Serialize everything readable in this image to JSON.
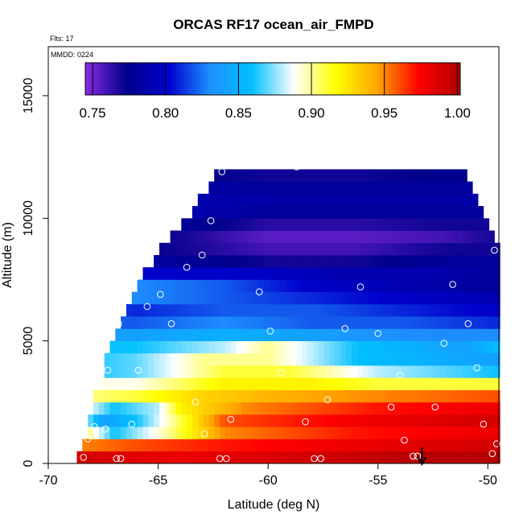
{
  "chart_data": {
    "type": "heatmap",
    "title": "ORCAS RF17 ocean_air_FMPD",
    "annotations": [
      "Flts: 17",
      "MMDD: 0224"
    ],
    "xlabel": "Latitude (deg N)",
    "ylabel": "Altitude (m)",
    "xlim": [
      -70,
      -49.5
    ],
    "ylim": [
      0,
      17000
    ],
    "x_ticks": [
      -70,
      -65,
      -60,
      -55,
      -50
    ],
    "y_ticks": [
      0,
      5000,
      10000,
      15000
    ],
    "colorbar": {
      "range": [
        0.745,
        1.002
      ],
      "ticks": [
        0.75,
        0.8,
        0.85,
        0.9,
        0.95,
        1.0
      ],
      "tick_labels": [
        "0.75",
        "0.80",
        "0.85",
        "0.90",
        "0.95",
        "1.00"
      ],
      "colors": [
        "#8a2be2",
        "#00008b",
        "#0000cd",
        "#1e90ff",
        "#00bfff",
        "#ffffff",
        "#ffff00",
        "#ffa500",
        "#ff0000",
        "#b20000"
      ]
    },
    "domain_top_profile": [
      [
        -68.7,
        0
      ],
      [
        -68.4,
        1000
      ],
      [
        -67.9,
        2500
      ],
      [
        -67.3,
        4800
      ],
      [
        -66.4,
        6200
      ],
      [
        -65.6,
        7800
      ],
      [
        -64.8,
        8800
      ],
      [
        -63.8,
        9900
      ],
      [
        -62.7,
        11200
      ],
      [
        -62.2,
        12000
      ],
      [
        -51.0,
        12000
      ],
      [
        -50.6,
        10800
      ],
      [
        -50.0,
        9600
      ],
      [
        -49.5,
        8800
      ]
    ],
    "bands": [
      {
        "alt": 250,
        "values": [
          [
            -68.7,
            0.99
          ],
          [
            -64,
            0.98
          ],
          [
            -58,
            0.99
          ],
          [
            -53,
            1.0
          ],
          [
            -49.5,
            1.0
          ]
        ]
      },
      {
        "alt": 750,
        "values": [
          [
            -68.7,
            0.95
          ],
          [
            -66,
            0.96
          ],
          [
            -62,
            0.97
          ],
          [
            -56,
            0.98
          ],
          [
            -49.5,
            0.99
          ]
        ]
      },
      {
        "alt": 1250,
        "values": [
          [
            -68.7,
            0.92
          ],
          [
            -67,
            0.86
          ],
          [
            -64.5,
            0.9
          ],
          [
            -62,
            0.95
          ],
          [
            -56,
            0.97
          ],
          [
            -49.5,
            0.98
          ]
        ]
      },
      {
        "alt": 1750,
        "values": [
          [
            -68.7,
            0.9
          ],
          [
            -67.5,
            0.84
          ],
          [
            -66,
            0.86
          ],
          [
            -64.3,
            0.9
          ],
          [
            -62,
            0.96
          ],
          [
            -55,
            0.98
          ],
          [
            -49.5,
            0.99
          ]
        ]
      },
      {
        "alt": 2250,
        "values": [
          [
            -68.7,
            0.9
          ],
          [
            -67,
            0.86
          ],
          [
            -65,
            0.88
          ],
          [
            -64,
            0.92
          ],
          [
            -61,
            0.95
          ],
          [
            -55,
            0.97
          ],
          [
            -49.5,
            0.98
          ]
        ]
      },
      {
        "alt": 2750,
        "values": [
          [
            -68.7,
            0.9
          ],
          [
            -66,
            0.91
          ],
          [
            -63,
            0.93
          ],
          [
            -60,
            0.94
          ],
          [
            -55,
            0.95
          ],
          [
            -49.5,
            0.96
          ]
        ]
      },
      {
        "alt": 3250,
        "values": [
          [
            -68.7,
            0.89
          ],
          [
            -66,
            0.89
          ],
          [
            -62,
            0.92
          ],
          [
            -58,
            0.92
          ],
          [
            -55,
            0.91
          ],
          [
            -49.5,
            0.91
          ]
        ]
      },
      {
        "alt": 3750,
        "values": [
          [
            -68.7,
            0.86
          ],
          [
            -66,
            0.87
          ],
          [
            -62,
            0.91
          ],
          [
            -59,
            0.91
          ],
          [
            -55,
            0.88
          ],
          [
            -49.5,
            0.86
          ]
        ]
      },
      {
        "alt": 4250,
        "values": [
          [
            -68.7,
            0.86
          ],
          [
            -66,
            0.87
          ],
          [
            -63,
            0.9
          ],
          [
            -60,
            0.9
          ],
          [
            -56,
            0.86
          ],
          [
            -49.5,
            0.84
          ]
        ]
      },
      {
        "alt": 4750,
        "values": [
          [
            -68.7,
            0.86
          ],
          [
            -66,
            0.86
          ],
          [
            -62,
            0.88
          ],
          [
            -60,
            0.9
          ],
          [
            -56,
            0.86
          ],
          [
            -51,
            0.84
          ],
          [
            -49.5,
            0.86
          ]
        ]
      },
      {
        "alt": 5250,
        "values": [
          [
            -68.7,
            0.84
          ],
          [
            -66,
            0.84
          ],
          [
            -62,
            0.85
          ],
          [
            -58,
            0.84
          ],
          [
            -54,
            0.83
          ],
          [
            -49.5,
            0.83
          ]
        ]
      },
      {
        "alt": 5750,
        "values": [
          [
            -68.7,
            0.82
          ],
          [
            -66,
            0.82
          ],
          [
            -62,
            0.83
          ],
          [
            -58,
            0.82
          ],
          [
            -54,
            0.82
          ],
          [
            -49.5,
            0.81
          ]
        ]
      },
      {
        "alt": 6250,
        "values": [
          [
            -68.7,
            0.82
          ],
          [
            -66,
            0.81
          ],
          [
            -62,
            0.82
          ],
          [
            -58,
            0.82
          ],
          [
            -54,
            0.81
          ],
          [
            -49.5,
            0.8
          ]
        ]
      },
      {
        "alt": 6750,
        "values": [
          [
            -68.7,
            0.83
          ],
          [
            -66,
            0.83
          ],
          [
            -62,
            0.82
          ],
          [
            -58,
            0.81
          ],
          [
            -54,
            0.8
          ],
          [
            -49.5,
            0.79
          ]
        ]
      },
      {
        "alt": 7250,
        "values": [
          [
            -68.7,
            0.83
          ],
          [
            -66,
            0.83
          ],
          [
            -62,
            0.82
          ],
          [
            -58,
            0.8
          ],
          [
            -54,
            0.79
          ],
          [
            -49.5,
            0.78
          ]
        ]
      },
      {
        "alt": 7750,
        "values": [
          [
            -68.7,
            0.8
          ],
          [
            -64,
            0.8
          ],
          [
            -61,
            0.8
          ],
          [
            -57,
            0.79
          ],
          [
            -53,
            0.79
          ],
          [
            -49.5,
            0.78
          ]
        ]
      },
      {
        "alt": 8250,
        "values": [
          [
            -68.7,
            0.79
          ],
          [
            -64,
            0.78
          ],
          [
            -60,
            0.77
          ],
          [
            -56,
            0.77
          ],
          [
            -52,
            0.78
          ],
          [
            -49.5,
            0.78
          ]
        ]
      },
      {
        "alt": 8750,
        "values": [
          [
            -68.7,
            0.78
          ],
          [
            -64,
            0.77
          ],
          [
            -60,
            0.76
          ],
          [
            -56,
            0.76
          ],
          [
            -52,
            0.77
          ],
          [
            -49.5,
            0.77
          ]
        ]
      },
      {
        "alt": 9250,
        "values": [
          [
            -68.7,
            0.78
          ],
          [
            -64,
            0.77
          ],
          [
            -60,
            0.755
          ],
          [
            -56,
            0.755
          ],
          [
            -52,
            0.76
          ],
          [
            -49.5,
            0.77
          ]
        ]
      },
      {
        "alt": 9750,
        "values": [
          [
            -68.7,
            0.78
          ],
          [
            -64,
            0.78
          ],
          [
            -60,
            0.765
          ],
          [
            -56,
            0.765
          ],
          [
            -52,
            0.77
          ],
          [
            -49.5,
            0.77
          ]
        ]
      },
      {
        "alt": 10250,
        "values": [
          [
            -68.7,
            0.79
          ],
          [
            -64,
            0.79
          ],
          [
            -60,
            0.78
          ],
          [
            -56,
            0.78
          ],
          [
            -52,
            0.78
          ],
          [
            -49.5,
            0.78
          ]
        ]
      },
      {
        "alt": 10750,
        "values": [
          [
            -68.7,
            0.79
          ],
          [
            -64,
            0.79
          ],
          [
            -60,
            0.785
          ],
          [
            -56,
            0.785
          ],
          [
            -52,
            0.785
          ],
          [
            -49.5,
            0.785
          ]
        ]
      },
      {
        "alt": 11250,
        "values": [
          [
            -68.7,
            0.785
          ],
          [
            -64,
            0.785
          ],
          [
            -60,
            0.78
          ],
          [
            -56,
            0.78
          ],
          [
            -52,
            0.78
          ],
          [
            -49.5,
            0.78
          ]
        ]
      },
      {
        "alt": 11750,
        "values": [
          [
            -68.7,
            0.78
          ],
          [
            -64,
            0.775
          ],
          [
            -60,
            0.77
          ],
          [
            -56,
            0.77
          ],
          [
            -52,
            0.775
          ],
          [
            -49.5,
            0.775
          ]
        ]
      }
    ],
    "sample_points": [
      [
        -68.4,
        250
      ],
      [
        -68.2,
        1000
      ],
      [
        -67.9,
        1500
      ],
      [
        -67.4,
        1400
      ],
      [
        -66.9,
        200
      ],
      [
        -66.7,
        200
      ],
      [
        -66.2,
        1600
      ],
      [
        -67.3,
        3800
      ],
      [
        -66.8,
        5700
      ],
      [
        -65.9,
        3800
      ],
      [
        -66.0,
        7600
      ],
      [
        -65.5,
        6400
      ],
      [
        -64.9,
        6900
      ],
      [
        -64.4,
        5700
      ],
      [
        -63.7,
        8000
      ],
      [
        -63.0,
        8500
      ],
      [
        -62.6,
        9900
      ],
      [
        -62.1,
        11900
      ],
      [
        -63.3,
        2500
      ],
      [
        -62.9,
        1200
      ],
      [
        -62.2,
        200
      ],
      [
        -61.9,
        200
      ],
      [
        -61.7,
        1800
      ],
      [
        -61.3,
        4600
      ],
      [
        -60.4,
        7000
      ],
      [
        -59.9,
        5400
      ],
      [
        -59.4,
        3700
      ],
      [
        -58.7,
        12100
      ],
      [
        -58.3,
        1700
      ],
      [
        -57.9,
        200
      ],
      [
        -57.6,
        200
      ],
      [
        -57.3,
        2600
      ],
      [
        -56.5,
        5500
      ],
      [
        -55.8,
        7200
      ],
      [
        -55.4,
        12200
      ],
      [
        -55.0,
        5300
      ],
      [
        -54.4,
        2300
      ],
      [
        -54.0,
        3600
      ],
      [
        -53.8,
        950
      ],
      [
        -53.4,
        300
      ],
      [
        -53.2,
        300
      ],
      [
        -52.4,
        2300
      ],
      [
        -52.0,
        4900
      ],
      [
        -51.6,
        7300
      ],
      [
        -50.9,
        5700
      ],
      [
        -50.5,
        3900
      ],
      [
        -50.2,
        1600
      ],
      [
        -49.8,
        400
      ],
      [
        -49.6,
        800
      ],
      [
        -50.7,
        11900
      ],
      [
        -49.7,
        8700
      ]
    ],
    "arrow_marker": {
      "lat": -53.0
    }
  }
}
